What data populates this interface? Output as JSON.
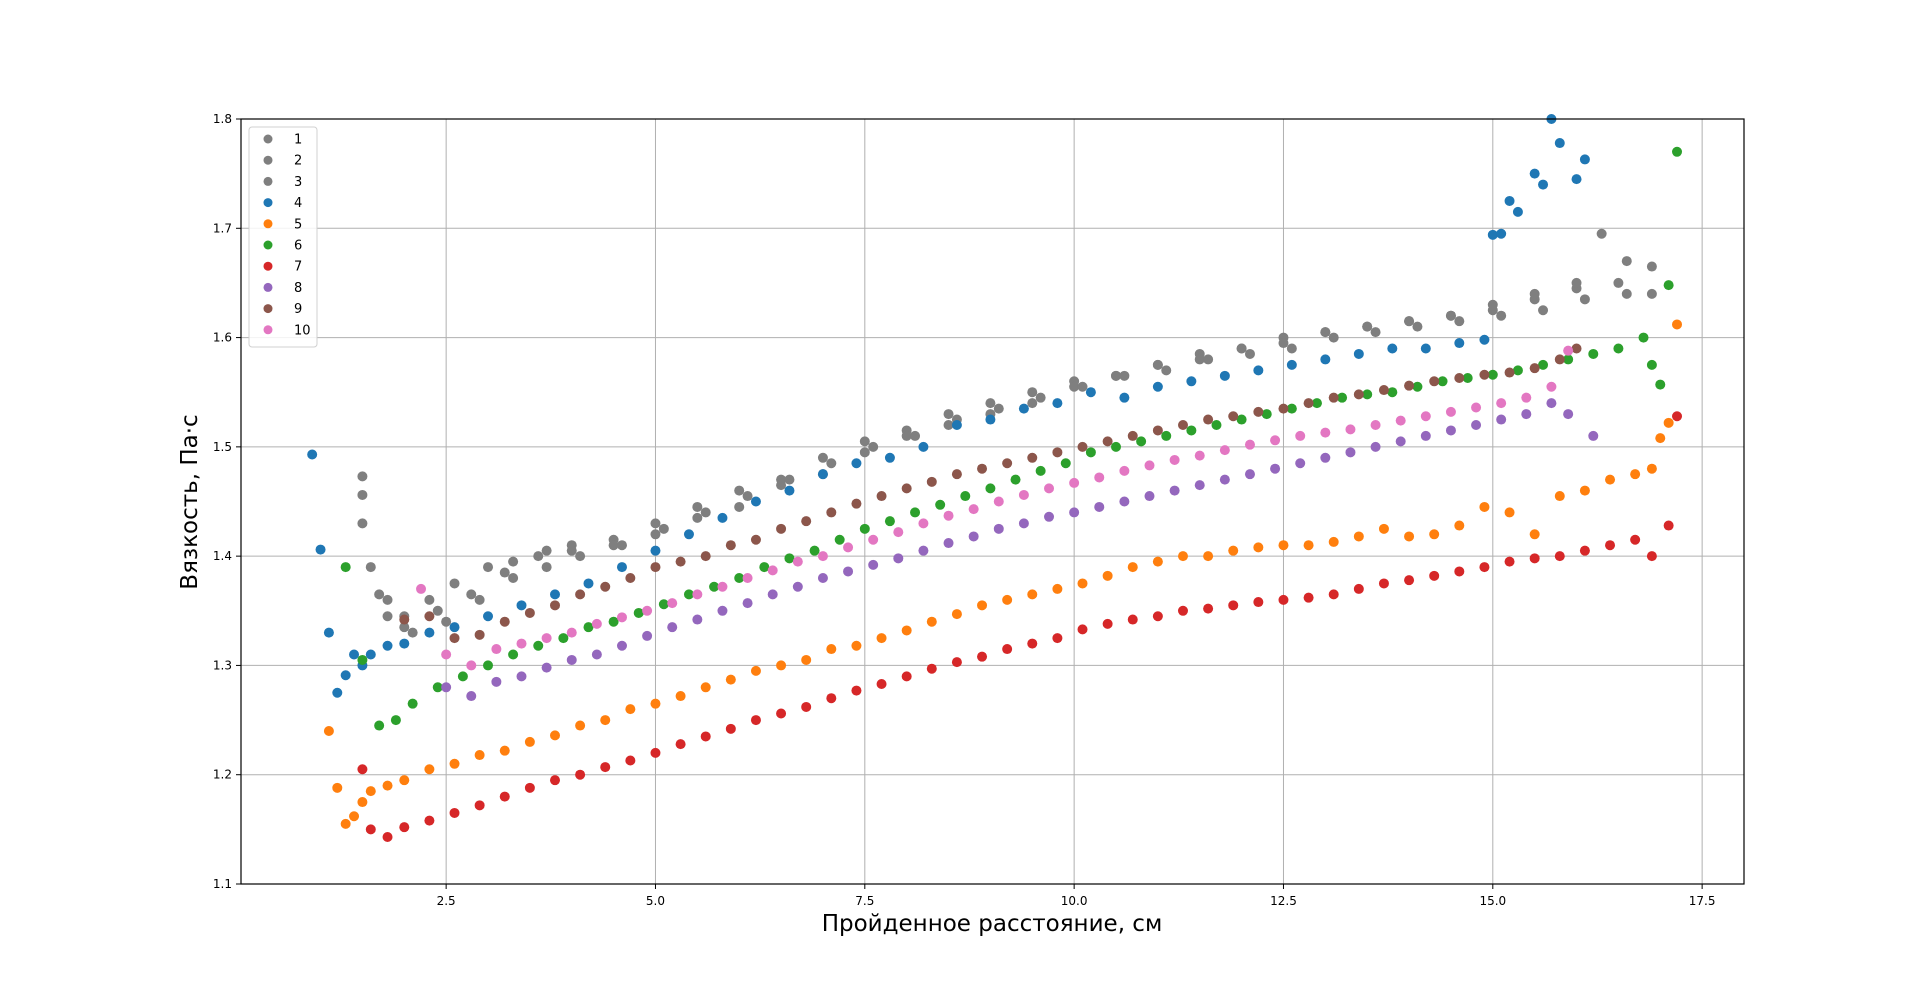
{
  "chart_data": {
    "type": "scatter",
    "title": "",
    "xlabel": "Пройденное расстояние, см",
    "ylabel": "Вязкость, Па·с",
    "xlim": [
      0.05,
      18.0
    ],
    "ylim": [
      1.1,
      1.8
    ],
    "xticks": [
      2.5,
      5.0,
      7.5,
      10.0,
      12.5,
      15.0,
      17.5
    ],
    "xtick_labels": [
      "2.5",
      "5.0",
      "7.5",
      "10.0",
      "12.5",
      "15.0",
      "17.5"
    ],
    "yticks": [
      1.1,
      1.2,
      1.3,
      1.4,
      1.5,
      1.6,
      1.7,
      1.8
    ],
    "ytick_labels": [
      "1.1",
      "1.2",
      "1.3",
      "1.4",
      "1.5",
      "1.6",
      "1.7",
      "1.8"
    ],
    "grid": true,
    "legend_position": "top-left",
    "series": [
      {
        "name": "1",
        "color": "#7f7f7f",
        "x": [
          1.5,
          1.6,
          1.8,
          2.0,
          2.3,
          2.6,
          3.0,
          3.3,
          3.7,
          4.0,
          4.5,
          5.0,
          5.5,
          6.0,
          6.5,
          7.0,
          7.5,
          8.0,
          8.5,
          9.0,
          9.5,
          10.0,
          10.5,
          11.0,
          11.5,
          12.0,
          12.5,
          13.0,
          13.5,
          14.0,
          14.5,
          15.0,
          15.5,
          16.0,
          16.5,
          16.9
        ],
        "y": [
          1.473,
          1.39,
          1.36,
          1.345,
          1.36,
          1.375,
          1.39,
          1.395,
          1.405,
          1.41,
          1.415,
          1.43,
          1.445,
          1.46,
          1.47,
          1.49,
          1.505,
          1.515,
          1.53,
          1.54,
          1.55,
          1.56,
          1.565,
          1.575,
          1.585,
          1.59,
          1.6,
          1.605,
          1.61,
          1.615,
          1.62,
          1.63,
          1.635,
          1.645,
          1.65,
          1.665
        ]
      },
      {
        "name": "2",
        "color": "#7f7f7f",
        "x": [
          1.5,
          1.7,
          2.0,
          2.4,
          2.8,
          3.2,
          3.6,
          4.0,
          4.5,
          5.0,
          5.5,
          6.0,
          6.5,
          7.0,
          7.5,
          8.0,
          8.5,
          9.0,
          9.5,
          10.0,
          10.5,
          11.0,
          11.5,
          12.0,
          12.5,
          13.0,
          13.5,
          14.0,
          14.5,
          15.0,
          15.5,
          16.0,
          16.3,
          16.6
        ],
        "y": [
          1.456,
          1.365,
          1.335,
          1.35,
          1.365,
          1.385,
          1.4,
          1.405,
          1.41,
          1.42,
          1.435,
          1.445,
          1.465,
          1.475,
          1.495,
          1.51,
          1.52,
          1.53,
          1.54,
          1.555,
          1.565,
          1.575,
          1.58,
          1.59,
          1.595,
          1.605,
          1.61,
          1.615,
          1.62,
          1.625,
          1.64,
          1.65,
          1.695,
          1.67
        ]
      },
      {
        "name": "3",
        "color": "#7f7f7f",
        "x": [
          1.5,
          1.8,
          2.1,
          2.5,
          2.9,
          3.3,
          3.7,
          4.1,
          4.6,
          5.1,
          5.6,
          6.1,
          6.6,
          7.1,
          7.6,
          8.1,
          8.6,
          9.1,
          9.6,
          10.1,
          10.6,
          11.1,
          11.6,
          12.1,
          12.6,
          13.1,
          13.6,
          14.1,
          14.6,
          15.1,
          15.6,
          16.1,
          16.6,
          16.9
        ],
        "y": [
          1.43,
          1.345,
          1.33,
          1.34,
          1.36,
          1.38,
          1.39,
          1.4,
          1.41,
          1.425,
          1.44,
          1.455,
          1.47,
          1.485,
          1.5,
          1.51,
          1.525,
          1.535,
          1.545,
          1.555,
          1.565,
          1.57,
          1.58,
          1.585,
          1.59,
          1.6,
          1.605,
          1.61,
          1.615,
          1.62,
          1.625,
          1.635,
          1.64,
          1.64
        ]
      },
      {
        "name": "4",
        "color": "#1f77b4",
        "x": [
          0.9,
          1.0,
          1.1,
          1.2,
          1.3,
          1.4,
          1.5,
          1.6,
          1.8,
          2.0,
          2.3,
          2.6,
          3.0,
          3.4,
          3.8,
          4.2,
          4.6,
          5.0,
          5.4,
          5.8,
          6.2,
          6.6,
          7.0,
          7.4,
          7.8,
          8.2,
          8.6,
          9.0,
          9.4,
          9.8,
          10.2,
          10.6,
          11.0,
          11.4,
          11.8,
          12.2,
          12.6,
          13.0,
          13.4,
          13.8,
          14.2,
          14.6,
          14.9,
          15.0,
          15.1,
          15.2,
          15.3,
          15.5,
          15.6,
          15.7,
          15.8,
          16.0,
          16.1
        ],
        "y": [
          1.493,
          1.406,
          1.33,
          1.275,
          1.291,
          1.31,
          1.3,
          1.31,
          1.318,
          1.32,
          1.33,
          1.335,
          1.345,
          1.355,
          1.365,
          1.375,
          1.39,
          1.405,
          1.42,
          1.435,
          1.45,
          1.46,
          1.475,
          1.485,
          1.49,
          1.5,
          1.52,
          1.525,
          1.535,
          1.54,
          1.55,
          1.545,
          1.555,
          1.56,
          1.565,
          1.57,
          1.575,
          1.58,
          1.585,
          1.59,
          1.59,
          1.595,
          1.598,
          1.694,
          1.695,
          1.725,
          1.715,
          1.75,
          1.74,
          1.8,
          1.778,
          1.745,
          1.763
        ]
      },
      {
        "name": "5",
        "color": "#ff7f0e",
        "x": [
          1.1,
          1.2,
          1.3,
          1.4,
          1.5,
          1.6,
          1.8,
          2.0,
          2.3,
          2.6,
          2.9,
          3.2,
          3.5,
          3.8,
          4.1,
          4.4,
          4.7,
          5.0,
          5.3,
          5.6,
          5.9,
          6.2,
          6.5,
          6.8,
          7.1,
          7.4,
          7.7,
          8.0,
          8.3,
          8.6,
          8.9,
          9.2,
          9.5,
          9.8,
          10.1,
          10.4,
          10.7,
          11.0,
          11.3,
          11.6,
          11.9,
          12.2,
          12.5,
          12.8,
          13.1,
          13.4,
          13.7,
          14.0,
          14.3,
          14.6,
          14.9,
          15.2,
          15.5,
          15.8,
          16.1,
          16.4,
          16.7,
          16.9,
          17.0,
          17.1,
          17.2
        ],
        "y": [
          1.24,
          1.188,
          1.155,
          1.162,
          1.175,
          1.185,
          1.19,
          1.195,
          1.205,
          1.21,
          1.218,
          1.222,
          1.23,
          1.236,
          1.245,
          1.25,
          1.26,
          1.265,
          1.272,
          1.28,
          1.287,
          1.295,
          1.3,
          1.305,
          1.315,
          1.318,
          1.325,
          1.332,
          1.34,
          1.347,
          1.355,
          1.36,
          1.365,
          1.37,
          1.375,
          1.382,
          1.39,
          1.395,
          1.4,
          1.4,
          1.405,
          1.408,
          1.41,
          1.41,
          1.413,
          1.418,
          1.425,
          1.418,
          1.42,
          1.428,
          1.445,
          1.44,
          1.42,
          1.455,
          1.46,
          1.47,
          1.475,
          1.48,
          1.508,
          1.522,
          1.612
        ]
      },
      {
        "name": "6",
        "color": "#2ca02c",
        "x": [
          1.3,
          1.5,
          1.7,
          1.9,
          2.1,
          2.4,
          2.7,
          3.0,
          3.3,
          3.6,
          3.9,
          4.2,
          4.5,
          4.8,
          5.1,
          5.4,
          5.7,
          6.0,
          6.3,
          6.6,
          6.9,
          7.2,
          7.5,
          7.8,
          8.1,
          8.4,
          8.7,
          9.0,
          9.3,
          9.6,
          9.9,
          10.2,
          10.5,
          10.8,
          11.1,
          11.4,
          11.7,
          12.0,
          12.3,
          12.6,
          12.9,
          13.2,
          13.5,
          13.8,
          14.1,
          14.4,
          14.7,
          15.0,
          15.3,
          15.6,
          15.9,
          16.2,
          16.5,
          16.8,
          16.9,
          17.0,
          17.1,
          17.2
        ],
        "y": [
          1.39,
          1.305,
          1.245,
          1.25,
          1.265,
          1.28,
          1.29,
          1.3,
          1.31,
          1.318,
          1.325,
          1.335,
          1.34,
          1.348,
          1.356,
          1.365,
          1.372,
          1.38,
          1.39,
          1.398,
          1.405,
          1.415,
          1.425,
          1.432,
          1.44,
          1.447,
          1.455,
          1.462,
          1.47,
          1.478,
          1.485,
          1.495,
          1.5,
          1.505,
          1.51,
          1.515,
          1.52,
          1.525,
          1.53,
          1.535,
          1.54,
          1.545,
          1.548,
          1.55,
          1.555,
          1.56,
          1.563,
          1.566,
          1.57,
          1.575,
          1.58,
          1.585,
          1.59,
          1.6,
          1.575,
          1.557,
          1.648,
          1.77
        ]
      },
      {
        "name": "7",
        "color": "#d62728",
        "x": [
          1.5,
          1.6,
          1.8,
          2.0,
          2.3,
          2.6,
          2.9,
          3.2,
          3.5,
          3.8,
          4.1,
          4.4,
          4.7,
          5.0,
          5.3,
          5.6,
          5.9,
          6.2,
          6.5,
          6.8,
          7.1,
          7.4,
          7.7,
          8.0,
          8.3,
          8.6,
          8.9,
          9.2,
          9.5,
          9.8,
          10.1,
          10.4,
          10.7,
          11.0,
          11.3,
          11.6,
          11.9,
          12.2,
          12.5,
          12.8,
          13.1,
          13.4,
          13.7,
          14.0,
          14.3,
          14.6,
          14.9,
          15.2,
          15.5,
          15.8,
          16.1,
          16.4,
          16.7,
          16.9,
          17.1,
          17.2
        ],
        "y": [
          1.205,
          1.15,
          1.143,
          1.152,
          1.158,
          1.165,
          1.172,
          1.18,
          1.188,
          1.195,
          1.2,
          1.207,
          1.213,
          1.22,
          1.228,
          1.235,
          1.242,
          1.25,
          1.256,
          1.262,
          1.27,
          1.277,
          1.283,
          1.29,
          1.297,
          1.303,
          1.308,
          1.315,
          1.32,
          1.325,
          1.333,
          1.338,
          1.342,
          1.345,
          1.35,
          1.352,
          1.355,
          1.358,
          1.36,
          1.362,
          1.365,
          1.37,
          1.375,
          1.378,
          1.382,
          1.386,
          1.39,
          1.395,
          1.398,
          1.4,
          1.405,
          1.41,
          1.415,
          1.4,
          1.428,
          1.528
        ]
      },
      {
        "name": "8",
        "color": "#9467bd",
        "x": [
          2.5,
          2.8,
          3.1,
          3.4,
          3.7,
          4.0,
          4.3,
          4.6,
          4.9,
          5.2,
          5.5,
          5.8,
          6.1,
          6.4,
          6.7,
          7.0,
          7.3,
          7.6,
          7.9,
          8.2,
          8.5,
          8.8,
          9.1,
          9.4,
          9.7,
          10.0,
          10.3,
          10.6,
          10.9,
          11.2,
          11.5,
          11.8,
          12.1,
          12.4,
          12.7,
          13.0,
          13.3,
          13.6,
          13.9,
          14.2,
          14.5,
          14.8,
          15.1,
          15.4,
          15.7,
          15.9,
          16.2
        ],
        "y": [
          1.28,
          1.272,
          1.285,
          1.29,
          1.298,
          1.305,
          1.31,
          1.318,
          1.327,
          1.335,
          1.342,
          1.35,
          1.357,
          1.365,
          1.372,
          1.38,
          1.386,
          1.392,
          1.398,
          1.405,
          1.412,
          1.418,
          1.425,
          1.43,
          1.436,
          1.44,
          1.445,
          1.45,
          1.455,
          1.46,
          1.465,
          1.47,
          1.475,
          1.48,
          1.485,
          1.49,
          1.495,
          1.5,
          1.505,
          1.51,
          1.515,
          1.52,
          1.525,
          1.53,
          1.54,
          1.53,
          1.51
        ]
      },
      {
        "name": "9",
        "color": "#8c564b",
        "x": [
          2.0,
          2.3,
          2.6,
          2.9,
          3.2,
          3.5,
          3.8,
          4.1,
          4.4,
          4.7,
          5.0,
          5.3,
          5.6,
          5.9,
          6.2,
          6.5,
          6.8,
          7.1,
          7.4,
          7.7,
          8.0,
          8.3,
          8.6,
          8.9,
          9.2,
          9.5,
          9.8,
          10.1,
          10.4,
          10.7,
          11.0,
          11.3,
          11.6,
          11.9,
          12.2,
          12.5,
          12.8,
          13.1,
          13.4,
          13.7,
          14.0,
          14.3,
          14.6,
          14.9,
          15.2,
          15.5,
          15.8,
          16.0
        ],
        "y": [
          1.342,
          1.345,
          1.325,
          1.328,
          1.34,
          1.348,
          1.355,
          1.365,
          1.372,
          1.38,
          1.39,
          1.395,
          1.4,
          1.41,
          1.415,
          1.425,
          1.432,
          1.44,
          1.448,
          1.455,
          1.462,
          1.468,
          1.475,
          1.48,
          1.485,
          1.49,
          1.495,
          1.5,
          1.505,
          1.51,
          1.515,
          1.52,
          1.525,
          1.528,
          1.532,
          1.535,
          1.54,
          1.545,
          1.548,
          1.552,
          1.556,
          1.56,
          1.563,
          1.566,
          1.568,
          1.572,
          1.58,
          1.59
        ]
      },
      {
        "name": "10",
        "color": "#e377c2",
        "x": [
          2.2,
          2.5,
          2.8,
          3.1,
          3.4,
          3.7,
          4.0,
          4.3,
          4.6,
          4.9,
          5.2,
          5.5,
          5.8,
          6.1,
          6.4,
          6.7,
          7.0,
          7.3,
          7.6,
          7.9,
          8.2,
          8.5,
          8.8,
          9.1,
          9.4,
          9.7,
          10.0,
          10.3,
          10.6,
          10.9,
          11.2,
          11.5,
          11.8,
          12.1,
          12.4,
          12.7,
          13.0,
          13.3,
          13.6,
          13.9,
          14.2,
          14.5,
          14.8,
          15.1,
          15.4,
          15.7,
          15.9
        ],
        "y": [
          1.37,
          1.31,
          1.3,
          1.315,
          1.32,
          1.325,
          1.33,
          1.338,
          1.344,
          1.35,
          1.357,
          1.365,
          1.372,
          1.38,
          1.387,
          1.395,
          1.4,
          1.408,
          1.415,
          1.422,
          1.43,
          1.437,
          1.443,
          1.45,
          1.456,
          1.462,
          1.467,
          1.472,
          1.478,
          1.483,
          1.488,
          1.492,
          1.497,
          1.502,
          1.506,
          1.51,
          1.513,
          1.516,
          1.52,
          1.524,
          1.528,
          1.532,
          1.536,
          1.54,
          1.545,
          1.555,
          1.588
        ]
      }
    ]
  }
}
